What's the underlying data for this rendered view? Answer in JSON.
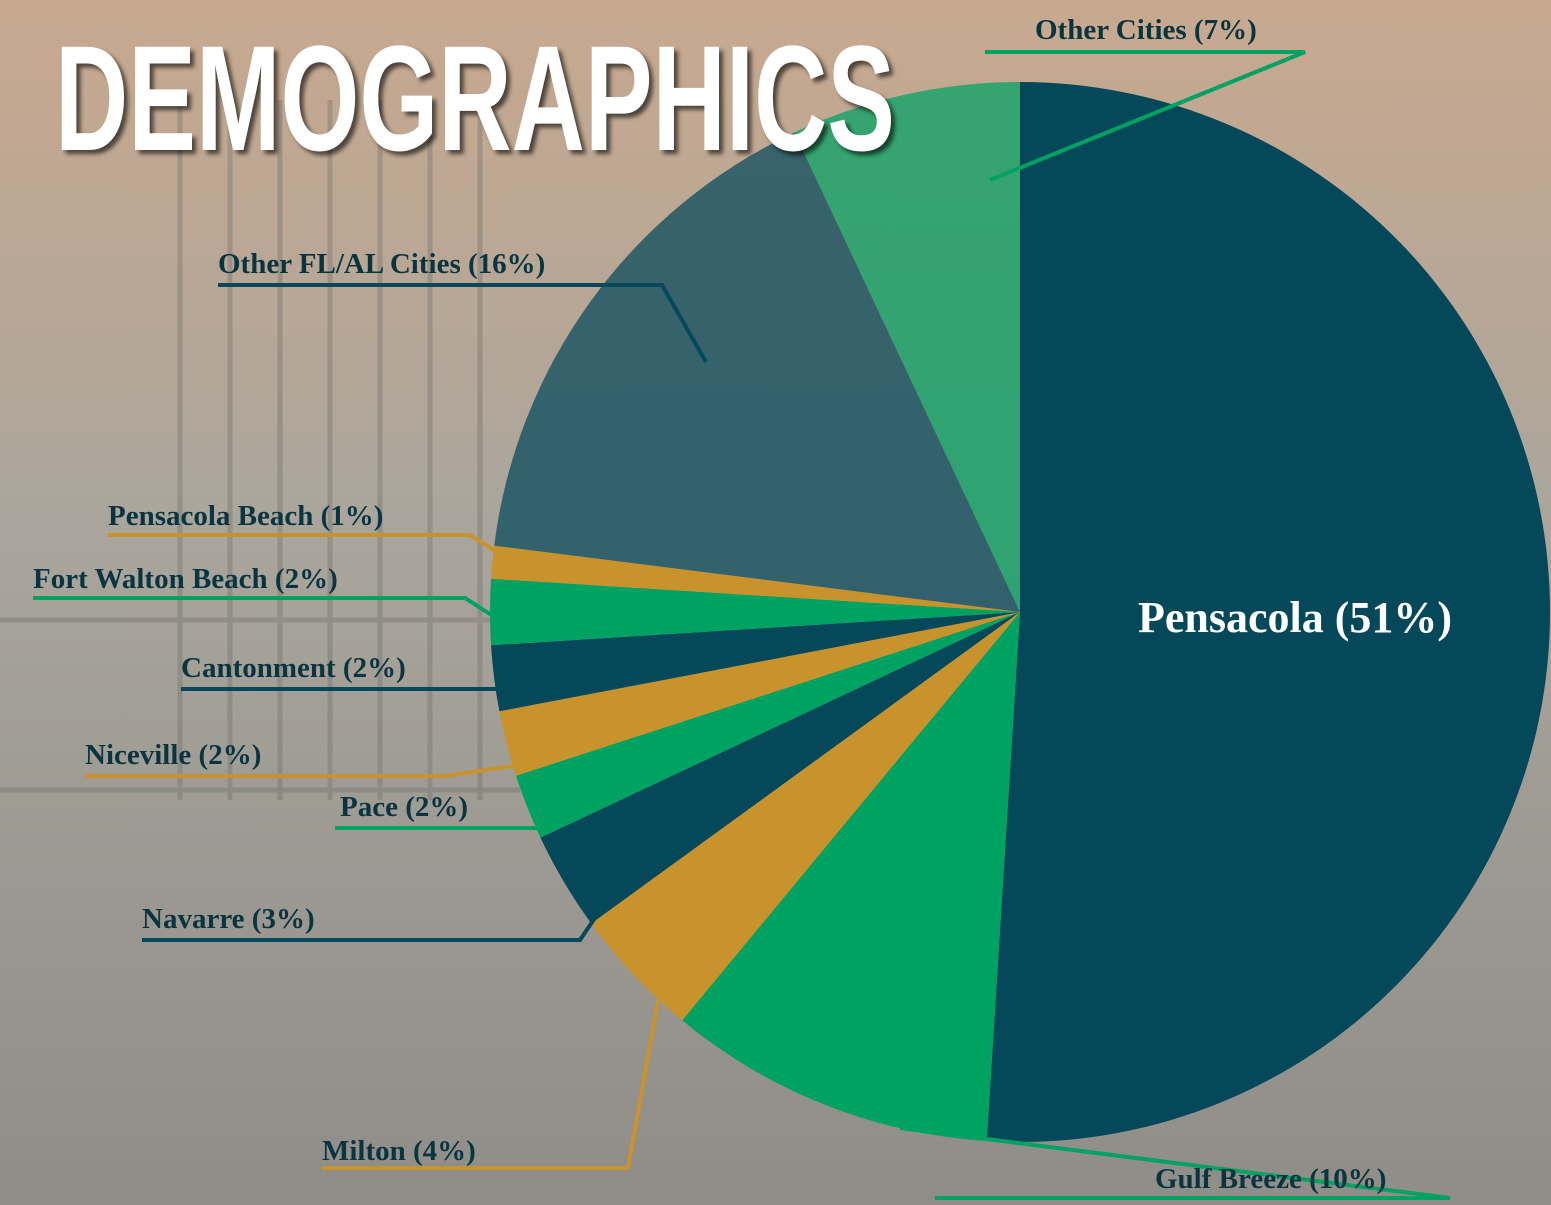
{
  "chart_data": {
    "type": "pie",
    "title": "DEMOGRAPHICS",
    "categories": [
      "Pensacola (51%)",
      "Gulf Breeze (10%)",
      "Milton (4%)",
      "Navarre (3%)",
      "Pace (2%)",
      "Niceville (2%)",
      "Cantonment (2%)",
      "Fort Walton Beach (2%)",
      "Pensacola Beach (1%)",
      "Other FL/AL Cities (16%)",
      "Other Cities (7%)"
    ],
    "values": [
      51,
      10,
      4,
      3,
      2,
      2,
      2,
      2,
      1,
      16,
      7
    ],
    "colors": [
      "#04485a",
      "#00a262",
      "#c8932c",
      "#04485a",
      "#00a262",
      "#c8932c",
      "#04485a",
      "#00a262",
      "#c8932c",
      "#04485a",
      "#00a262"
    ]
  }
}
